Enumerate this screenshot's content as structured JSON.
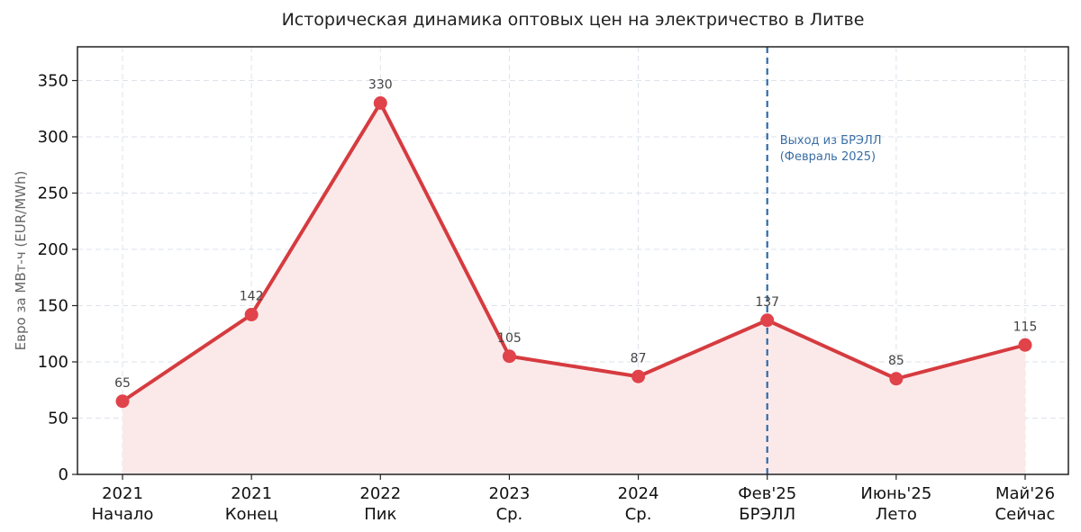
{
  "chart_data": {
    "type": "line",
    "title": "Историческая динамика оптовых цен на электричество в Литве",
    "ylabel": "Евро за МВт-ч (EUR/MWh)",
    "xlabel": "",
    "categories": [
      [
        "2021",
        "Начало"
      ],
      [
        "2021",
        "Конец"
      ],
      [
        "2022",
        "Пик"
      ],
      [
        "2023",
        "Ср."
      ],
      [
        "2024",
        "Ср."
      ],
      [
        "Фев'25",
        "БРЭЛЛ"
      ],
      [
        "Июнь'25",
        "Лето"
      ],
      [
        "Май'26",
        "Сейчас"
      ]
    ],
    "series": [
      {
        "values": [
          65,
          142,
          330,
          105,
          87,
          137,
          85,
          115
        ]
      }
    ],
    "data_labels": [
      "65",
      "142",
      "330",
      "105",
      "87",
      "137",
      "85",
      "115"
    ],
    "ylim": [
      0,
      380
    ],
    "yticks": [
      0,
      50,
      100,
      150,
      200,
      250,
      300,
      350
    ],
    "grid": true,
    "colors": {
      "line": "#d63b3f",
      "marker": "#e0434a",
      "fill": "#fbe9ea",
      "vline": "#2f6aa8",
      "grid": "#dde3ea"
    },
    "vline": {
      "category_index": 5,
      "label_lines": [
        "Выход из БРЭЛЛ",
        "(Февраль 2025)"
      ]
    }
  }
}
